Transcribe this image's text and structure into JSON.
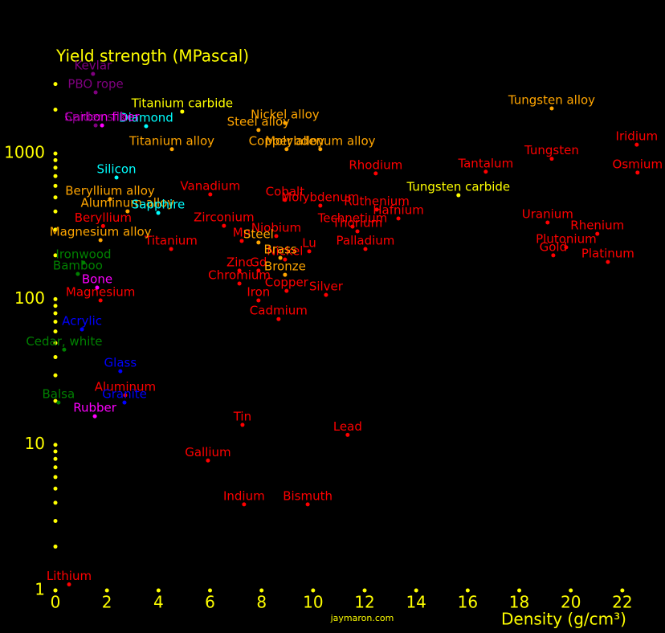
{
  "chart_data": {
    "type": "scatter",
    "title": "Yield strength (MPascal)",
    "xlabel": "Density (g/cm³)",
    "credit": "jaymaron.com",
    "log_y": true,
    "xlim": [
      0,
      23.5
    ],
    "ylim": [
      1,
      5000
    ],
    "xticks": [
      0,
      2,
      4,
      6,
      8,
      10,
      12,
      14,
      16,
      18,
      20,
      22
    ],
    "yticks": [
      1,
      10,
      100,
      1000
    ],
    "yminor": [
      2,
      3,
      4,
      5,
      6,
      7,
      8,
      9,
      20,
      30,
      40,
      50,
      60,
      70,
      80,
      90,
      200,
      300,
      400,
      500,
      600,
      700,
      800,
      900,
      2000,
      3000
    ],
    "axis_color": "#ffff00",
    "points": [
      {
        "label": "Lithium",
        "x": 0.53,
        "y": 1.1,
        "color": "#ff0000"
      },
      {
        "label": "Iridium",
        "x": 22.56,
        "y": 1150,
        "color": "#ff0000"
      },
      {
        "label": "Osmium",
        "x": 22.59,
        "y": 740,
        "color": "#ff0000"
      },
      {
        "label": "Tungsten",
        "x": 19.26,
        "y": 920,
        "color": "#ff0000"
      },
      {
        "label": "Tantalum",
        "x": 16.7,
        "y": 750,
        "color": "#ff0000"
      },
      {
        "label": "Rhodium",
        "x": 12.43,
        "y": 730,
        "color": "#ff0000"
      },
      {
        "label": "Vanadium",
        "x": 6.01,
        "y": 524,
        "color": "#ff0000"
      },
      {
        "label": "Cobalt",
        "x": 8.91,
        "y": 480,
        "color": "#ff0000"
      },
      {
        "label": "Molybdenum",
        "x": 10.28,
        "y": 439,
        "color": "#ff0000"
      },
      {
        "label": "Ruthenium",
        "x": 12.47,
        "y": 412,
        "color": "#ff0000"
      },
      {
        "label": "Hafnium",
        "x": 13.31,
        "y": 358,
        "color": "#ff0000"
      },
      {
        "label": "Technetium",
        "x": 11.53,
        "y": 315,
        "color": "#ff0000"
      },
      {
        "label": "Zirconium",
        "x": 6.54,
        "y": 319,
        "color": "#ff0000"
      },
      {
        "label": "Niobium",
        "x": 8.57,
        "y": 271,
        "color": "#ff0000"
      },
      {
        "label": "Thorium",
        "x": 11.72,
        "y": 292,
        "color": "#ff0000"
      },
      {
        "label": "Mn",
        "x": 7.23,
        "y": 251,
        "color": "#ff0000"
      },
      {
        "label": "Titanium",
        "x": 4.49,
        "y": 221,
        "color": "#ff0000"
      },
      {
        "label": "Lu",
        "x": 9.85,
        "y": 213,
        "color": "#ff0000"
      },
      {
        "label": "Palladium",
        "x": 12.03,
        "y": 221,
        "color": "#ff0000"
      },
      {
        "label": "Nickel",
        "x": 8.91,
        "y": 187,
        "color": "#ff0000"
      },
      {
        "label": "Zinc",
        "x": 7.14,
        "y": 157,
        "color": "#ff0000"
      },
      {
        "label": "Gd",
        "x": 7.88,
        "y": 157,
        "color": "#ff0000"
      },
      {
        "label": "Chromium",
        "x": 7.14,
        "y": 128,
        "color": "#ff0000"
      },
      {
        "label": "Copper",
        "x": 8.97,
        "y": 114,
        "color": "#ff0000"
      },
      {
        "label": "Silver",
        "x": 10.5,
        "y": 107,
        "color": "#ff0000"
      },
      {
        "label": "Iron",
        "x": 7.88,
        "y": 98,
        "color": "#ff0000"
      },
      {
        "label": "Cadmium",
        "x": 8.66,
        "y": 73,
        "color": "#ff0000"
      },
      {
        "label": "Magnesium",
        "x": 1.75,
        "y": 98,
        "color": "#ff0000"
      },
      {
        "label": "Beryllium",
        "x": 1.85,
        "y": 318,
        "color": "#ff0000"
      },
      {
        "label": "Aluminum",
        "x": 2.71,
        "y": 21.9,
        "color": "#ff0000"
      },
      {
        "label": "Tin",
        "x": 7.26,
        "y": 13.7,
        "color": "#ff0000"
      },
      {
        "label": "Lead",
        "x": 11.34,
        "y": 11.7,
        "color": "#ff0000"
      },
      {
        "label": "Gallium",
        "x": 5.92,
        "y": 7.8,
        "color": "#ff0000"
      },
      {
        "label": "Indium",
        "x": 7.32,
        "y": 3.9,
        "color": "#ff0000"
      },
      {
        "label": "Bismuth",
        "x": 9.79,
        "y": 3.9,
        "color": "#ff0000"
      },
      {
        "label": "Uranium",
        "x": 19.1,
        "y": 336,
        "color": "#ff0000"
      },
      {
        "label": "Rhenium",
        "x": 21.03,
        "y": 281,
        "color": "#ff0000"
      },
      {
        "label": "Plutonium",
        "x": 19.82,
        "y": 227,
        "color": "#ff0000"
      },
      {
        "label": "Gold",
        "x": 19.32,
        "y": 200,
        "color": "#ff0000"
      },
      {
        "label": "Platinum",
        "x": 21.44,
        "y": 180,
        "color": "#ff0000"
      },
      {
        "label": "Tungsten alloy",
        "x": 19.26,
        "y": 2040,
        "color": "#ffa500"
      },
      {
        "label": "Nickel alloy",
        "x": 8.91,
        "y": 1620,
        "color": "#ffa500"
      },
      {
        "label": "Steel alloy",
        "x": 7.88,
        "y": 1450,
        "color": "#ffa500"
      },
      {
        "label": "Molybdenum alloy",
        "x": 10.28,
        "y": 1070,
        "color": "#ffa500"
      },
      {
        "label": "Copper alloy",
        "x": 8.97,
        "y": 1070,
        "color": "#ffa500"
      },
      {
        "label": "Titanium alloy",
        "x": 4.52,
        "y": 1070,
        "color": "#ffa500"
      },
      {
        "label": "Beryllium alloy",
        "x": 2.12,
        "y": 486,
        "color": "#ffa500"
      },
      {
        "label": "Aluminum alloy",
        "x": 2.8,
        "y": 401,
        "color": "#ffa500"
      },
      {
        "label": "Magnesium alloy",
        "x": 1.75,
        "y": 254,
        "color": "#ffa500"
      },
      {
        "label": "Steel",
        "x": 7.88,
        "y": 245,
        "color": "#ffa500"
      },
      {
        "label": "Brass",
        "x": 8.73,
        "y": 192,
        "color": "#ffa500"
      },
      {
        "label": "Bronze",
        "x": 8.91,
        "y": 147,
        "color": "#ffa500"
      },
      {
        "label": "Titanium carbide",
        "x": 4.92,
        "y": 1940,
        "color": "#ffff00"
      },
      {
        "label": "Tungsten carbide",
        "x": 15.64,
        "y": 517,
        "color": "#ffff00"
      },
      {
        "label": "Diamond",
        "x": 3.52,
        "y": 1540,
        "color": "#00ffff"
      },
      {
        "label": "Silicon",
        "x": 2.37,
        "y": 684,
        "color": "#00ffff"
      },
      {
        "label": "Sapphire",
        "x": 3.99,
        "y": 391,
        "color": "#00ffff"
      },
      {
        "label": "Carbon fiber",
        "x": 1.81,
        "y": 1560,
        "color": "#ff00ff"
      },
      {
        "label": "Bone",
        "x": 1.62,
        "y": 120,
        "color": "#ff00ff"
      },
      {
        "label": "Rubber",
        "x": 1.53,
        "y": 15.7,
        "color": "#ff00ff"
      },
      {
        "label": "Kevlar",
        "x": 1.46,
        "y": 3520,
        "color": "#800080"
      },
      {
        "label": "PBO rope",
        "x": 1.56,
        "y": 2630,
        "color": "#800080"
      },
      {
        "label": "Spider silk",
        "x": 1.56,
        "y": 1560,
        "color": "#800080"
      },
      {
        "label": "Ironwood",
        "x": 1.09,
        "y": 178,
        "color": "#008000"
      },
      {
        "label": "Bamboo",
        "x": 0.87,
        "y": 149,
        "color": "#008000"
      },
      {
        "label": "Cedar, white",
        "x": 0.34,
        "y": 45,
        "color": "#008000"
      },
      {
        "label": "Balsa",
        "x": 0.12,
        "y": 19.5,
        "color": "#008000"
      },
      {
        "label": "Acrylic",
        "x": 1.03,
        "y": 62,
        "color": "#0000ff"
      },
      {
        "label": "Glass",
        "x": 2.52,
        "y": 32,
        "color": "#0000ff"
      },
      {
        "label": "Granite",
        "x": 2.68,
        "y": 19.5,
        "color": "#0000ff"
      }
    ]
  }
}
